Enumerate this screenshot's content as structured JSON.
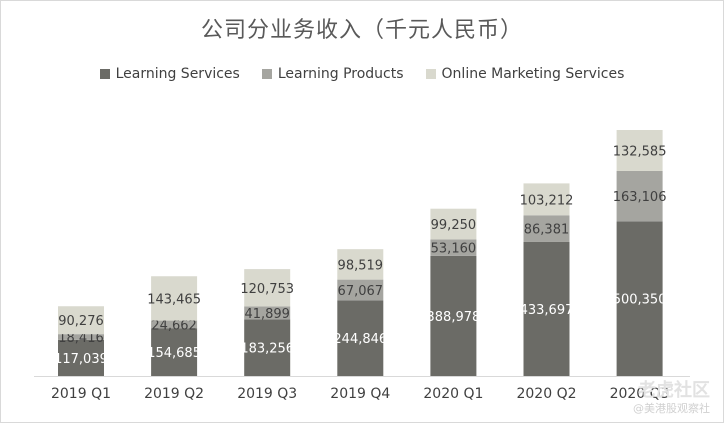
{
  "chart_data": {
    "type": "bar",
    "stacked": true,
    "title": "公司分业务收入（千元人民币）",
    "categories": [
      "2019 Q1",
      "2019 Q2",
      "2019 Q3",
      "2019 Q4",
      "2020 Q1",
      "2020 Q2",
      "2020 Q3"
    ],
    "series": [
      {
        "name": "Learning Services",
        "color": "#6b6b66",
        "label_color": "#ffffff",
        "values": [
          117039,
          154685,
          183256,
          244846,
          388978,
          433697,
          500350
        ],
        "labels": [
          "117,039",
          "154,685",
          "183,256",
          "244,846",
          "388,978",
          "433,697",
          "500,350"
        ]
      },
      {
        "name": "Learning Products",
        "color": "#a5a5a0",
        "label_color": "#404040",
        "values": [
          18416,
          24662,
          41899,
          67067,
          53160,
          86381,
          163106
        ],
        "labels": [
          "18,416",
          "24,662",
          "41,899",
          "67,067",
          "53,160",
          "86,381",
          "163,106"
        ]
      },
      {
        "name": "Online Marketing Services",
        "color": "#d9d9ce",
        "label_color": "#404040",
        "values": [
          90276,
          143465,
          120753,
          98519,
          99250,
          103212,
          132585
        ],
        "labels": [
          "90,276",
          "143,465",
          "120,753",
          "98,519",
          "99,250",
          "103,212",
          "132,585"
        ]
      }
    ],
    "legend_position": "top-center",
    "grid": false
  },
  "watermark": {
    "main": "老虎社区",
    "sub": "@美港股观察社"
  }
}
